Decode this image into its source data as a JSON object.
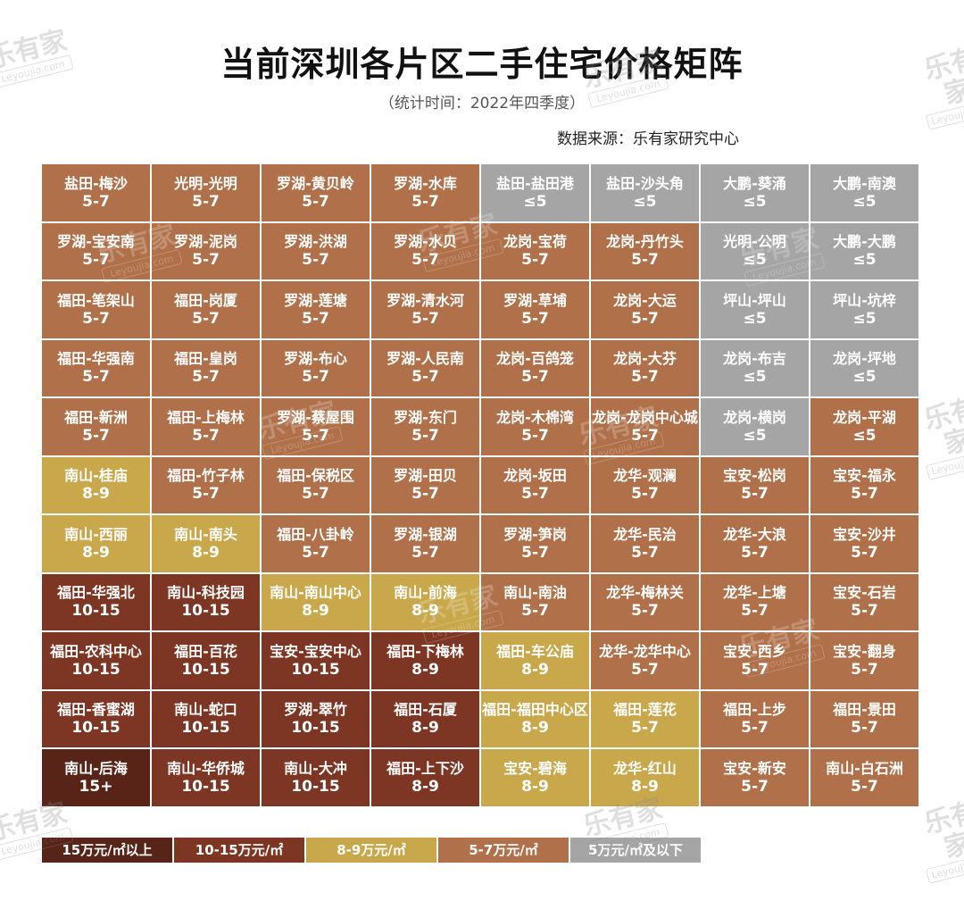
{
  "title": "当前深圳各片区二手住宅价格矩阵",
  "subtitle": "（统计时间：2022年四季度）",
  "source": "数据来源：乐有家研究中心",
  "watermark": {
    "cn": "乐有家",
    "en": "Leyoujia.com"
  },
  "colors": {
    "15+": "#592418",
    "10-15": "#7d3624",
    "8-9": "#c8a84b",
    "5-7": "#b07049",
    "≤5": "#a5a5a5"
  },
  "legend": [
    {
      "tier": "15+",
      "label": "15万元/㎡以上"
    },
    {
      "tier": "10-15",
      "label": "10-15万元/㎡"
    },
    {
      "tier": "8-9",
      "label": "8-9万元/㎡"
    },
    {
      "tier": "5-7",
      "label": "5-7万元/㎡"
    },
    {
      "tier": "≤5",
      "label": "5万元/㎡及以下"
    }
  ],
  "chart_data": {
    "type": "table",
    "title": "当前深圳各片区二手住宅价格矩阵",
    "unit": "万元/㎡",
    "rows": [
      [
        [
          "盐田-梅沙",
          "5-7"
        ],
        [
          "光明-光明",
          "5-7"
        ],
        [
          "罗湖-黄贝岭",
          "5-7"
        ],
        [
          "罗湖-水库",
          "5-7"
        ],
        [
          "盐田-盐田港",
          "≤5"
        ],
        [
          "盐田-沙头角",
          "≤5"
        ],
        [
          "大鹏-葵涌",
          "≤5"
        ],
        [
          "大鹏-南澳",
          "≤5"
        ]
      ],
      [
        [
          "罗湖-宝安南",
          "5-7"
        ],
        [
          "罗湖-泥岗",
          "5-7"
        ],
        [
          "罗湖-洪湖",
          "5-7"
        ],
        [
          "罗湖-水贝",
          "5-7"
        ],
        [
          "龙岗-宝荷",
          "5-7"
        ],
        [
          "龙岗-丹竹头",
          "5-7"
        ],
        [
          "光明-公明",
          "≤5"
        ],
        [
          "大鹏-大鹏",
          "≤5"
        ]
      ],
      [
        [
          "福田-笔架山",
          "5-7"
        ],
        [
          "福田-岗厦",
          "5-7"
        ],
        [
          "罗湖-莲塘",
          "5-7"
        ],
        [
          "罗湖-清水河",
          "5-7"
        ],
        [
          "罗湖-草埔",
          "5-7"
        ],
        [
          "龙岗-大运",
          "5-7"
        ],
        [
          "坪山-坪山",
          "≤5"
        ],
        [
          "坪山-坑梓",
          "≤5"
        ]
      ],
      [
        [
          "福田-华强南",
          "5-7"
        ],
        [
          "福田-皇岗",
          "5-7"
        ],
        [
          "罗湖-布心",
          "5-7"
        ],
        [
          "罗湖-人民南",
          "5-7"
        ],
        [
          "龙岗-百鸽笼",
          "5-7"
        ],
        [
          "龙岗-大芬",
          "5-7"
        ],
        [
          "龙岗-布吉",
          "≤5"
        ],
        [
          "龙岗-坪地",
          "≤5"
        ]
      ],
      [
        [
          "福田-新洲",
          "5-7"
        ],
        [
          "福田-上梅林",
          "5-7"
        ],
        [
          "罗湖-蔡屋围",
          "5-7"
        ],
        [
          "罗湖-东门",
          "5-7"
        ],
        [
          "龙岗-木棉湾",
          "5-7"
        ],
        [
          "龙岗-龙岗中心城",
          "5-7"
        ],
        [
          "龙岗-横岗",
          "≤5"
        ],
        [
          "龙岗-平湖",
          "≤5"
        ]
      ],
      [
        [
          "南山-桂庙",
          "8-9"
        ],
        [
          "福田-竹子林",
          "5-7"
        ],
        [
          "福田-保税区",
          "5-7"
        ],
        [
          "罗湖-田贝",
          "5-7"
        ],
        [
          "龙岗-坂田",
          "5-7"
        ],
        [
          "龙华-观澜",
          "5-7"
        ],
        [
          "宝安-松岗",
          "5-7"
        ],
        [
          "宝安-福永",
          "5-7"
        ]
      ],
      [
        [
          "南山-西丽",
          "8-9"
        ],
        [
          "南山-南头",
          "8-9"
        ],
        [
          "福田-八卦岭",
          "5-7"
        ],
        [
          "罗湖-银湖",
          "5-7"
        ],
        [
          "罗湖-笋岗",
          "5-7"
        ],
        [
          "龙华-民治",
          "5-7"
        ],
        [
          "龙华-大浪",
          "5-7"
        ],
        [
          "宝安-沙井",
          "5-7"
        ]
      ],
      [
        [
          "福田-华强北",
          "10-15"
        ],
        [
          "南山-科技园",
          "10-15"
        ],
        [
          "南山-南山中心",
          "8-9"
        ],
        [
          "南山-前海",
          "8-9"
        ],
        [
          "南山-南油",
          "5-7"
        ],
        [
          "龙华-梅林关",
          "5-7"
        ],
        [
          "龙华-上塘",
          "5-7"
        ],
        [
          "宝安-石岩",
          "5-7"
        ]
      ],
      [
        [
          "福田-农科中心",
          "10-15"
        ],
        [
          "福田-百花",
          "10-15"
        ],
        [
          "宝安-宝安中心",
          "10-15"
        ],
        [
          "福田-下梅林",
          "8-9"
        ],
        [
          "福田-车公庙",
          "8-9"
        ],
        [
          "龙华-龙华中心",
          "5-7"
        ],
        [
          "宝安-西乡",
          "5-7"
        ],
        [
          "宝安-翻身",
          "5-7"
        ]
      ],
      [
        [
          "福田-香蜜湖",
          "10-15"
        ],
        [
          "南山-蛇口",
          "10-15"
        ],
        [
          "罗湖-翠竹",
          "10-15"
        ],
        [
          "福田-石厦",
          "8-9"
        ],
        [
          "福田-福田中心区",
          "8-9"
        ],
        [
          "福田-莲花",
          "5-7"
        ],
        [
          "福田-上步",
          "5-7"
        ],
        [
          "福田-景田",
          "5-7"
        ]
      ],
      [
        [
          "南山-后海",
          "15+"
        ],
        [
          "南山-华侨城",
          "10-15"
        ],
        [
          "南山-大冲",
          "10-15"
        ],
        [
          "福田-上下沙",
          "8-9"
        ],
        [
          "宝安-碧海",
          "8-9"
        ],
        [
          "龙华-红山",
          "8-9"
        ],
        [
          "宝安-新安",
          "5-7"
        ],
        [
          "南山-白石洲",
          "5-7"
        ]
      ]
    ],
    "fill_overrides": [
      {
        "row": 4,
        "col": 7,
        "tier": "5-7"
      },
      {
        "row": 7,
        "col": 3,
        "tier": "8-9"
      },
      {
        "row": 8,
        "col": 3,
        "tier": "10-15"
      },
      {
        "row": 9,
        "col": 3,
        "tier": "10-15"
      },
      {
        "row": 10,
        "col": 3,
        "tier": "10-15"
      },
      {
        "row": 8,
        "col": 4,
        "tier": "8-9"
      },
      {
        "row": 9,
        "col": 4,
        "tier": "8-9"
      },
      {
        "row": 9,
        "col": 5,
        "tier": "8-9"
      },
      {
        "row": 10,
        "col": 5,
        "tier": "8-9"
      }
    ]
  }
}
